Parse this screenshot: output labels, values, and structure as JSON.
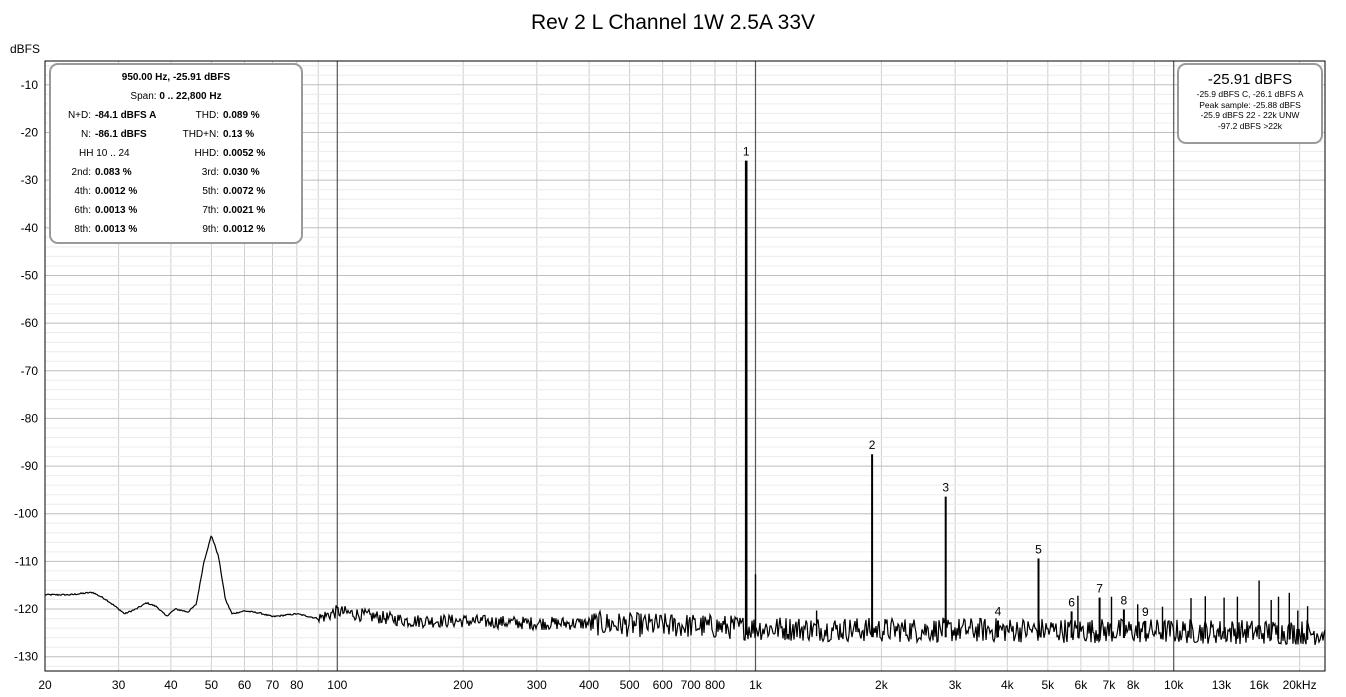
{
  "chart_data": {
    "type": "line",
    "title": "Rev 2 L Channel 1W 2.5A 33V",
    "ylabel": "dBFS",
    "xscale": "log",
    "xlim": [
      20,
      23000
    ],
    "ylim": [
      -133,
      -5
    ],
    "grid": true,
    "yticks": [
      -10,
      -20,
      -30,
      -40,
      -50,
      -60,
      -70,
      -80,
      -90,
      -100,
      -110,
      -120,
      -130
    ],
    "xticks": [
      {
        "value": 20,
        "label": "20"
      },
      {
        "value": 30,
        "label": "30"
      },
      {
        "value": 40,
        "label": "40"
      },
      {
        "value": 50,
        "label": "50"
      },
      {
        "value": 60,
        "label": "60"
      },
      {
        "value": 70,
        "label": "70"
      },
      {
        "value": 80,
        "label": "80"
      },
      {
        "value": 100,
        "label": "100"
      },
      {
        "value": 200,
        "label": "200"
      },
      {
        "value": 300,
        "label": "300"
      },
      {
        "value": 400,
        "label": "400"
      },
      {
        "value": 500,
        "label": "500"
      },
      {
        "value": 600,
        "label": "600"
      },
      {
        "value": 700,
        "label": "700"
      },
      {
        "value": 800,
        "label": "800"
      },
      {
        "value": 1000,
        "label": "1k"
      },
      {
        "value": 2000,
        "label": "2k"
      },
      {
        "value": 3000,
        "label": "3k"
      },
      {
        "value": 4000,
        "label": "4k"
      },
      {
        "value": 5000,
        "label": "5k"
      },
      {
        "value": 6000,
        "label": "6k"
      },
      {
        "value": 7000,
        "label": "7k"
      },
      {
        "value": 8000,
        "label": "8k"
      },
      {
        "value": 10000,
        "label": "10k"
      },
      {
        "value": 13000,
        "label": "13k"
      },
      {
        "value": 16000,
        "label": "16k"
      },
      {
        "value": 20000,
        "label": "20kHz"
      }
    ],
    "noise_floor": [
      [
        20,
        -117
      ],
      [
        23,
        -117
      ],
      [
        26,
        -116.5
      ],
      [
        28,
        -118
      ],
      [
        30,
        -120
      ],
      [
        31,
        -121
      ],
      [
        33,
        -120
      ],
      [
        35,
        -118.7
      ],
      [
        37,
        -119.5
      ],
      [
        39,
        -121.5
      ],
      [
        41,
        -120
      ],
      [
        44,
        -120.6
      ],
      [
        46,
        -119
      ],
      [
        48,
        -110
      ],
      [
        50,
        -104.5
      ],
      [
        52,
        -109
      ],
      [
        54,
        -118
      ],
      [
        56,
        -121
      ],
      [
        60,
        -120.4
      ],
      [
        65,
        -120.8
      ],
      [
        70,
        -121.6
      ],
      [
        80,
        -121
      ],
      [
        90,
        -122
      ],
      [
        100,
        -120.5
      ],
      [
        120,
        -121.5
      ],
      [
        150,
        -122.5
      ],
      [
        200,
        -122.5
      ],
      [
        300,
        -123
      ],
      [
        400,
        -123
      ],
      [
        500,
        -123.3
      ],
      [
        700,
        -123.5
      ],
      [
        1000,
        -124
      ],
      [
        2000,
        -124.4
      ],
      [
        4000,
        -124.4
      ],
      [
        8000,
        -124.6
      ],
      [
        16000,
        -124.8
      ],
      [
        23000,
        -125
      ]
    ],
    "harmonics": [
      {
        "label": "1",
        "freq": 950,
        "level": -25.91
      },
      {
        "label": "2",
        "freq": 1900,
        "level": -87.5
      },
      {
        "label": "3",
        "freq": 2850,
        "level": -96.4
      },
      {
        "label": "4",
        "freq": 3800,
        "level": -122.4
      },
      {
        "label": "5",
        "freq": 4750,
        "level": -109.4
      },
      {
        "label": "6",
        "freq": 5700,
        "level": -120.5
      },
      {
        "label": "7",
        "freq": 6650,
        "level": -117.6
      },
      {
        "label": "8",
        "freq": 7600,
        "level": -120.1
      },
      {
        "label": "9",
        "freq": 8550,
        "level": -122.5
      }
    ],
    "spurs": [
      {
        "freq": 1000,
        "level": -112.7
      },
      {
        "freq": 1400,
        "level": -120.3
      },
      {
        "freq": 5900,
        "level": -117.2
      },
      {
        "freq": 7100,
        "level": -117.4
      },
      {
        "freq": 8200,
        "level": -119
      },
      {
        "freq": 9400,
        "level": -119.5
      },
      {
        "freq": 11000,
        "level": -117.7
      },
      {
        "freq": 11900,
        "level": -117.3
      },
      {
        "freq": 13200,
        "level": -117.6
      },
      {
        "freq": 14200,
        "level": -117.4
      },
      {
        "freq": 16000,
        "level": -114
      },
      {
        "freq": 17100,
        "level": -118.1
      },
      {
        "freq": 17800,
        "level": -117.4
      },
      {
        "freq": 18900,
        "level": -116.6
      },
      {
        "freq": 19800,
        "level": -120.3
      },
      {
        "freq": 20900,
        "level": -119.4
      }
    ]
  },
  "stats_panel": {
    "header": "950.00 Hz, -25.91 dBFS",
    "span_label": "Span:",
    "span_value": "0 .. 22,800 Hz",
    "rows": [
      {
        "l1": "N+D:",
        "v1": "-84.1 dBFS A",
        "l2": "THD:",
        "v2": "0.089 %"
      },
      {
        "l1": "N:",
        "v1": "-86.1 dBFS",
        "l2": "THD+N:",
        "v2": "0.13 %"
      },
      {
        "l1": "",
        "v1": "",
        "l2": "HHD:",
        "v2": "0.0052 %"
      },
      {
        "l1": "2nd:",
        "v1": "0.083 %",
        "l2": "3rd:",
        "v2": "0.030 %"
      },
      {
        "l1": "4th:",
        "v1": "0.0012 %",
        "l2": "5th:",
        "v2": "0.0072 %"
      },
      {
        "l1": "6th:",
        "v1": "0.0013 %",
        "l2": "7th:",
        "v2": "0.0021 %"
      },
      {
        "l1": "8th:",
        "v1": "0.0013 %",
        "l2": "9th:",
        "v2": "0.0012 %"
      }
    ],
    "hh_label": "HH 10 .. 24"
  },
  "level_panel": {
    "main": "-25.91 dBFS",
    "line1": "-25.9 dBFS C, -26.1 dBFS A",
    "line2": "Peak sample: -25.88 dBFS",
    "line3": "-25.9 dBFS 22 - 22k UNW",
    "line4": "-97.2 dBFS >22k"
  }
}
